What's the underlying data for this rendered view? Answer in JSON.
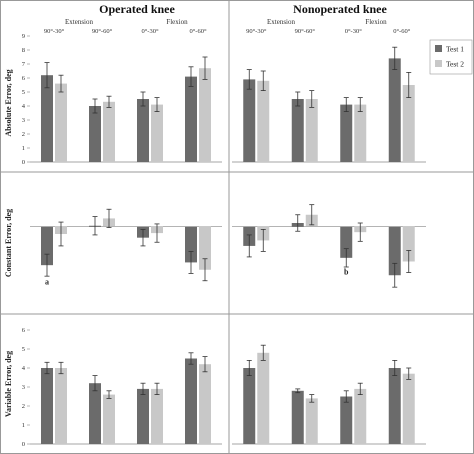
{
  "figure": {
    "columns": [
      {
        "title": "Operated knee",
        "groups": [
          "Extension",
          "Flexion"
        ]
      },
      {
        "title": "Nonoperated knee",
        "groups": [
          "Extension",
          "Flexion"
        ]
      }
    ],
    "legend": [
      "Test 1",
      "Test 2"
    ]
  },
  "colors": {
    "test1": "#6b6b6b",
    "test2": "#c8c8c8",
    "error": "#333333",
    "grid": "#888888",
    "frame": "#999999"
  },
  "chart_data": [
    {
      "type": "bar",
      "panel": "Operated knee",
      "ylabel": "Absolute Error, deg",
      "categories": [
        "90°-30°",
        "90°-60°",
        "0°-30°",
        "0°-60°"
      ],
      "ylim": [
        0,
        9
      ],
      "yticks": [
        0,
        1,
        2,
        3,
        4,
        5,
        6,
        7,
        8,
        9
      ],
      "series": [
        {
          "name": "Test 1",
          "values": [
            6.2,
            4.0,
            4.5,
            6.1
          ],
          "errors": [
            0.9,
            0.5,
            0.5,
            0.7
          ]
        },
        {
          "name": "Test 2",
          "values": [
            5.6,
            4.3,
            4.1,
            6.7
          ],
          "errors": [
            0.6,
            0.4,
            0.5,
            0.8
          ]
        }
      ],
      "annotations": []
    },
    {
      "type": "bar",
      "panel": "Nonoperated knee",
      "ylabel": "",
      "categories": [
        "90°-30°",
        "90°-60°",
        "0°-30°",
        "0°-60°"
      ],
      "ylim": [
        0,
        9
      ],
      "yticks": [],
      "series": [
        {
          "name": "Test 1",
          "values": [
            5.9,
            4.5,
            4.1,
            7.4
          ],
          "errors": [
            0.7,
            0.5,
            0.5,
            0.8
          ]
        },
        {
          "name": "Test 2",
          "values": [
            5.8,
            4.5,
            4.1,
            5.5
          ],
          "errors": [
            0.7,
            0.6,
            0.5,
            0.9
          ]
        }
      ],
      "annotations": []
    },
    {
      "type": "bar",
      "panel": "Operated knee",
      "ylabel": "Constant Error, deg",
      "categories": [
        "90°-30°",
        "90°-60°",
        "0°-30°",
        "0°-60°"
      ],
      "ylim": [
        -8,
        4
      ],
      "yticks": [],
      "series": [
        {
          "name": "Test 1",
          "values": [
            -4.2,
            0.1,
            -1.2,
            -3.9
          ],
          "errors": [
            1.2,
            1.0,
            0.9,
            1.2
          ]
        },
        {
          "name": "Test 2",
          "values": [
            -0.8,
            0.9,
            -0.7,
            -4.7
          ],
          "errors": [
            1.3,
            1.0,
            1.0,
            1.2
          ]
        }
      ],
      "annotations": [
        {
          "text": "a",
          "category": 0,
          "value": -6.3
        }
      ]
    },
    {
      "type": "bar",
      "panel": "Nonoperated knee",
      "ylabel": "",
      "categories": [
        "90°-30°",
        "90°-60°",
        "0°-30°",
        "0°-60°"
      ],
      "ylim": [
        -8,
        4
      ],
      "yticks": [],
      "series": [
        {
          "name": "Test 1",
          "values": [
            -2.1,
            0.4,
            -3.4,
            -5.3
          ],
          "errors": [
            1.2,
            0.9,
            1.0,
            1.3
          ]
        },
        {
          "name": "Test 2",
          "values": [
            -1.5,
            1.3,
            -0.6,
            -3.8
          ],
          "errors": [
            1.2,
            1.1,
            1.0,
            1.2
          ]
        }
      ],
      "annotations": [
        {
          "text": "b",
          "category": 2,
          "value": -5.2
        }
      ]
    },
    {
      "type": "bar",
      "panel": "Operated knee",
      "ylabel": "Variable Error, deg",
      "categories": [
        "90°-30°",
        "90°-60°",
        "0°-30°",
        "0°-60°"
      ],
      "ylim": [
        0,
        6
      ],
      "yticks": [
        0,
        1,
        2,
        3,
        4,
        5,
        6
      ],
      "series": [
        {
          "name": "Test 1",
          "values": [
            4.0,
            3.2,
            2.9,
            4.5
          ],
          "errors": [
            0.3,
            0.4,
            0.3,
            0.3
          ]
        },
        {
          "name": "Test 2",
          "values": [
            4.0,
            2.6,
            2.9,
            4.2
          ],
          "errors": [
            0.3,
            0.2,
            0.3,
            0.4
          ]
        }
      ],
      "annotations": []
    },
    {
      "type": "bar",
      "panel": "Nonoperated knee",
      "ylabel": "",
      "categories": [
        "90°-30°",
        "90°-60°",
        "0°-30°",
        "0°-60°"
      ],
      "ylim": [
        0,
        6
      ],
      "yticks": [],
      "series": [
        {
          "name": "Test 1",
          "values": [
            4.0,
            2.8,
            2.5,
            4.0
          ],
          "errors": [
            0.4,
            0.1,
            0.3,
            0.4
          ]
        },
        {
          "name": "Test 2",
          "values": [
            4.8,
            2.4,
            2.9,
            3.7
          ],
          "errors": [
            0.4,
            0.2,
            0.3,
            0.3
          ]
        }
      ],
      "annotations": []
    }
  ]
}
